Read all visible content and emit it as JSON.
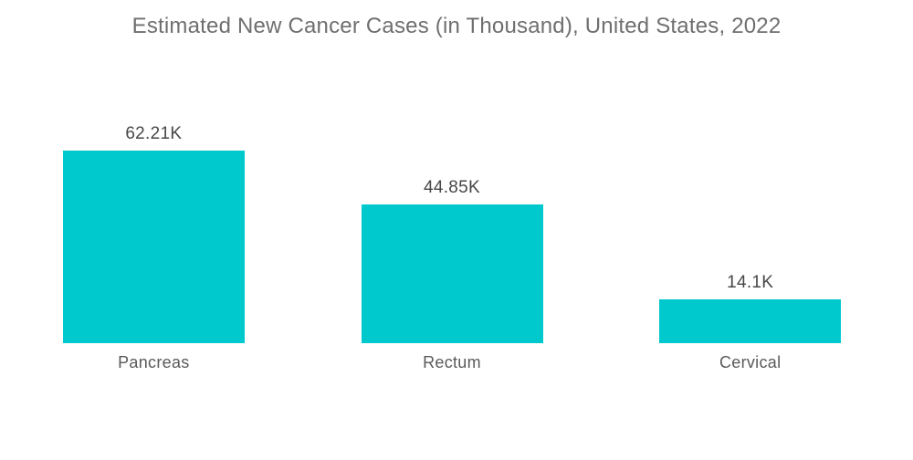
{
  "title": "Estimated New Cancer Cases (in Thousand), United States, 2022",
  "colors": {
    "bar": "#00C9CE",
    "title_text": "#6F6F6F",
    "value_text": "#474747",
    "category_text": "#5A5A5A",
    "background": "#FFFFFF"
  },
  "chart_data": {
    "type": "bar",
    "title": "Estimated New Cancer Cases (in Thousand), United States, 2022",
    "categories": [
      "Pancreas",
      "Rectum",
      "Cervical"
    ],
    "values": [
      62.21,
      44.85,
      14.1
    ],
    "value_labels": [
      "62.21K",
      "44.85K",
      "14.1K"
    ],
    "unit": "Thousand",
    "xlabel": "",
    "ylabel": "",
    "ylim": [
      0,
      65
    ],
    "grid": false,
    "legend": false,
    "axes_shown": false,
    "bar_color": "#00C9CE"
  }
}
